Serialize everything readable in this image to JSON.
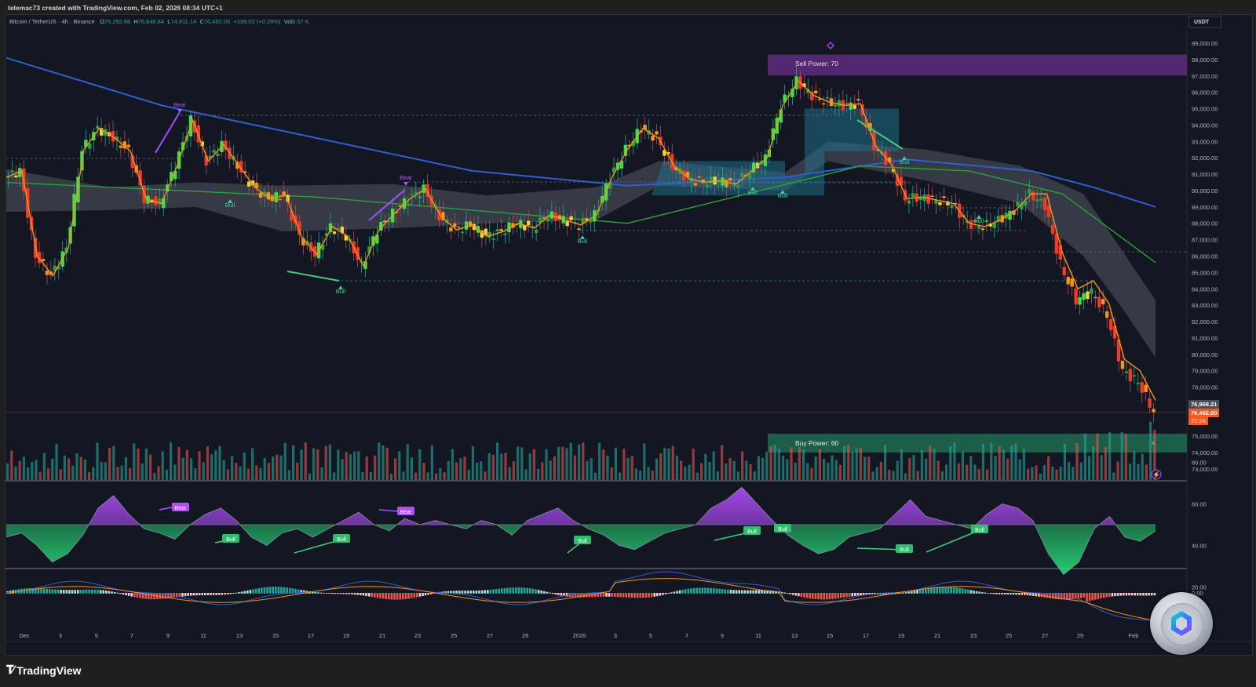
{
  "header": {
    "credit": "telemac73 created with TradingView.com, Feb 02, 2026 08:34 UTC+1"
  },
  "legend": {
    "symbol": "Bitcoin / TetherUS · 4h · Binance",
    "open_label": "O",
    "open": "76,292.98",
    "high_label": "H",
    "high": "76,846.84",
    "low_label": "L",
    "low": "74,911.14",
    "close_label": "C",
    "close": "76,492.00",
    "change": "+199.02 (+0.26%)",
    "vol_label": "Vol",
    "vol": "8.57 K"
  },
  "price_axis": {
    "currency": "USDT",
    "ticks": [
      "99,000.00",
      "98,000.00",
      "97,000.00",
      "96,000.00",
      "95,000.00",
      "94,000.00",
      "93,000.00",
      "92,000.00",
      "91,000.00",
      "90,000.00",
      "89,000.00",
      "88,000.00",
      "87,000.00",
      "86,000.00",
      "85,000.00",
      "84,000.00",
      "83,000.00",
      "82,000.00",
      "81,000.00",
      "80,000.00",
      "79,000.00",
      "78,000.00",
      "75,000.00",
      "74,000.00",
      "73,000.00"
    ],
    "tag_prev": "76,968.21",
    "tag_last": "76,492.00",
    "tag_countdown": "25:24"
  },
  "oscillator_axis": {
    "ticks": [
      "80.00",
      "60.00",
      "40.00",
      "20.00"
    ]
  },
  "macd_axis": {
    "ticks": [
      "0.00"
    ]
  },
  "time_axis": {
    "ticks": [
      "Dec",
      "3",
      "5",
      "7",
      "9",
      "11",
      "13",
      "15",
      "17",
      "19",
      "21",
      "23",
      "25",
      "27",
      "29",
      "2026",
      "3",
      "5",
      "7",
      "9",
      "11",
      "13",
      "15",
      "17",
      "19",
      "21",
      "23",
      "25",
      "27",
      "29",
      "Feb"
    ]
  },
  "zones": {
    "sell": {
      "label": "Sell Power: 70"
    },
    "buy": {
      "label": "Buy Power: 60"
    }
  },
  "signals": {
    "bear": "Bear",
    "bull": "Bull"
  },
  "brand": {
    "name": "TradingView",
    "mark": "TV"
  },
  "colors": {
    "bg": "#131722",
    "up": "#26a69a",
    "down": "#ef5350",
    "ema_fast": "#f7931a",
    "ema_mid": "#2e9e3e",
    "ema_slow": "#2f5fd0",
    "sell_zone": "#5b2a78",
    "buy_zone": "#1e6b4e",
    "last_price": "#ff5722"
  },
  "chart_data": {
    "type": "candlestick",
    "title": "Bitcoin / TetherUS · 4h · Binance",
    "xlabel": "",
    "ylabel": "USDT",
    "ylim": [
      72500,
      99500
    ],
    "grid": false,
    "x_ticks": [
      "Dec",
      "3",
      "5",
      "7",
      "9",
      "11",
      "13",
      "15",
      "17",
      "19",
      "21",
      "23",
      "25",
      "27",
      "29",
      "2026",
      "3",
      "5",
      "7",
      "9",
      "11",
      "13",
      "15",
      "17",
      "19",
      "21",
      "23",
      "25",
      "27",
      "29",
      "Feb"
    ],
    "price_path": [
      [
        0,
        90800
      ],
      [
        1,
        91200
      ],
      [
        2,
        86000
      ],
      [
        3,
        84800
      ],
      [
        4,
        86500
      ],
      [
        5,
        92500
      ],
      [
        6,
        93800
      ],
      [
        7,
        93200
      ],
      [
        8,
        92400
      ],
      [
        9,
        89500
      ],
      [
        10,
        89200
      ],
      [
        11,
        91500
      ],
      [
        12,
        94300
      ],
      [
        13,
        91800
      ],
      [
        14,
        92800
      ],
      [
        15,
        91500
      ],
      [
        16,
        90200
      ],
      [
        17,
        89500
      ],
      [
        18,
        89700
      ],
      [
        19,
        87200
      ],
      [
        20,
        86100
      ],
      [
        21,
        87800
      ],
      [
        22,
        87200
      ],
      [
        23,
        85400
      ],
      [
        24,
        87600
      ],
      [
        25,
        88600
      ],
      [
        26,
        89500
      ],
      [
        27,
        90100
      ],
      [
        28,
        88400
      ],
      [
        29,
        87600
      ],
      [
        30,
        87900
      ],
      [
        31,
        87200
      ],
      [
        32,
        87500
      ],
      [
        33,
        88000
      ],
      [
        34,
        87700
      ],
      [
        35,
        88500
      ],
      [
        36,
        88200
      ],
      [
        37,
        87900
      ],
      [
        38,
        88500
      ],
      [
        39,
        90800
      ],
      [
        40,
        92500
      ],
      [
        41,
        93800
      ],
      [
        42,
        93200
      ],
      [
        43,
        91500
      ],
      [
        44,
        90700
      ],
      [
        45,
        90500
      ],
      [
        46,
        90600
      ],
      [
        47,
        90400
      ],
      [
        48,
        91200
      ],
      [
        49,
        92000
      ],
      [
        50,
        95200
      ],
      [
        51,
        96700
      ],
      [
        52,
        95800
      ],
      [
        53,
        95400
      ],
      [
        54,
        95200
      ],
      [
        55,
        95300
      ],
      [
        56,
        92700
      ],
      [
        57,
        91600
      ],
      [
        58,
        89500
      ],
      [
        59,
        89600
      ],
      [
        60,
        89400
      ],
      [
        61,
        89200
      ],
      [
        62,
        88000
      ],
      [
        63,
        87800
      ],
      [
        64,
        88200
      ],
      [
        65,
        88800
      ],
      [
        66,
        89800
      ],
      [
        67,
        89100
      ],
      [
        68,
        85500
      ],
      [
        69,
        83300
      ],
      [
        70,
        83800
      ],
      [
        71,
        82400
      ],
      [
        72,
        79000
      ],
      [
        73,
        78300
      ],
      [
        74,
        76492
      ]
    ],
    "ema_fast_path": "follows price (orange)",
    "ema_mid_approx": [
      [
        0,
        90500
      ],
      [
        20,
        89600
      ],
      [
        40,
        88000
      ],
      [
        55,
        91500
      ],
      [
        62,
        91200
      ],
      [
        68,
        89800
      ],
      [
        74,
        85600
      ]
    ],
    "ema_slow_approx": [
      [
        0,
        98100
      ],
      [
        10,
        95200
      ],
      [
        20,
        93200
      ],
      [
        30,
        91200
      ],
      [
        40,
        90300
      ],
      [
        50,
        90800
      ],
      [
        58,
        91900
      ],
      [
        66,
        91200
      ],
      [
        70,
        90200
      ],
      [
        74,
        89000
      ]
    ],
    "zones": [
      {
        "label": "Sell Power: 70",
        "from": 97500,
        "to": 98300
      },
      {
        "label": "Buy Power: 60",
        "from": 74200,
        "to": 75100
      }
    ],
    "signals": [
      {
        "type": "Bear",
        "x": "Dec 10",
        "price": 94800
      },
      {
        "type": "Bull",
        "x": "Dec 12",
        "price": 89900
      },
      {
        "type": "Bear",
        "x": "Dec 22",
        "price": 90000
      },
      {
        "type": "Bull",
        "x": "Dec 18",
        "price": 84500
      },
      {
        "type": "Bull",
        "x": "Dec 30",
        "price": 88000
      },
      {
        "type": "Bull",
        "x": "Jan 10",
        "price": 90400
      },
      {
        "type": "Bull",
        "x": "Jan 11",
        "price": 90300
      },
      {
        "type": "Bull",
        "x": "Jan 19",
        "price": 92100
      },
      {
        "type": "Bull",
        "x": "Jan 23",
        "price": 88700
      }
    ],
    "oscillator": {
      "ylim": [
        20,
        80
      ],
      "midline": 50,
      "values_approx": [
        44,
        46,
        40,
        32,
        36,
        45,
        58,
        64,
        55,
        48,
        46,
        43,
        50,
        55,
        58,
        52,
        44,
        40,
        46,
        48,
        44,
        48,
        52,
        56,
        50,
        47,
        53,
        50,
        52,
        50,
        48,
        52,
        50,
        45,
        52,
        55,
        58,
        52,
        48,
        45,
        40,
        38,
        42,
        46,
        48,
        50,
        58,
        62,
        68,
        60,
        52,
        45,
        40,
        36,
        38,
        44,
        46,
        48,
        55,
        62,
        54,
        52,
        50,
        48,
        55,
        60,
        58,
        52,
        36,
        26,
        32,
        48,
        54,
        44,
        42,
        47
      ],
      "labels": [
        "Bear",
        "Bull",
        "Bull",
        "Bear",
        "Bull",
        "Bull",
        "Bull",
        "Bull",
        "Bull"
      ]
    },
    "macd": {
      "zero": "0.00",
      "series": [
        "MACD (blue)",
        "Signal (orange)",
        "Histogram"
      ]
    },
    "volume": {
      "unit": "K",
      "last": "8.57 K"
    }
  }
}
